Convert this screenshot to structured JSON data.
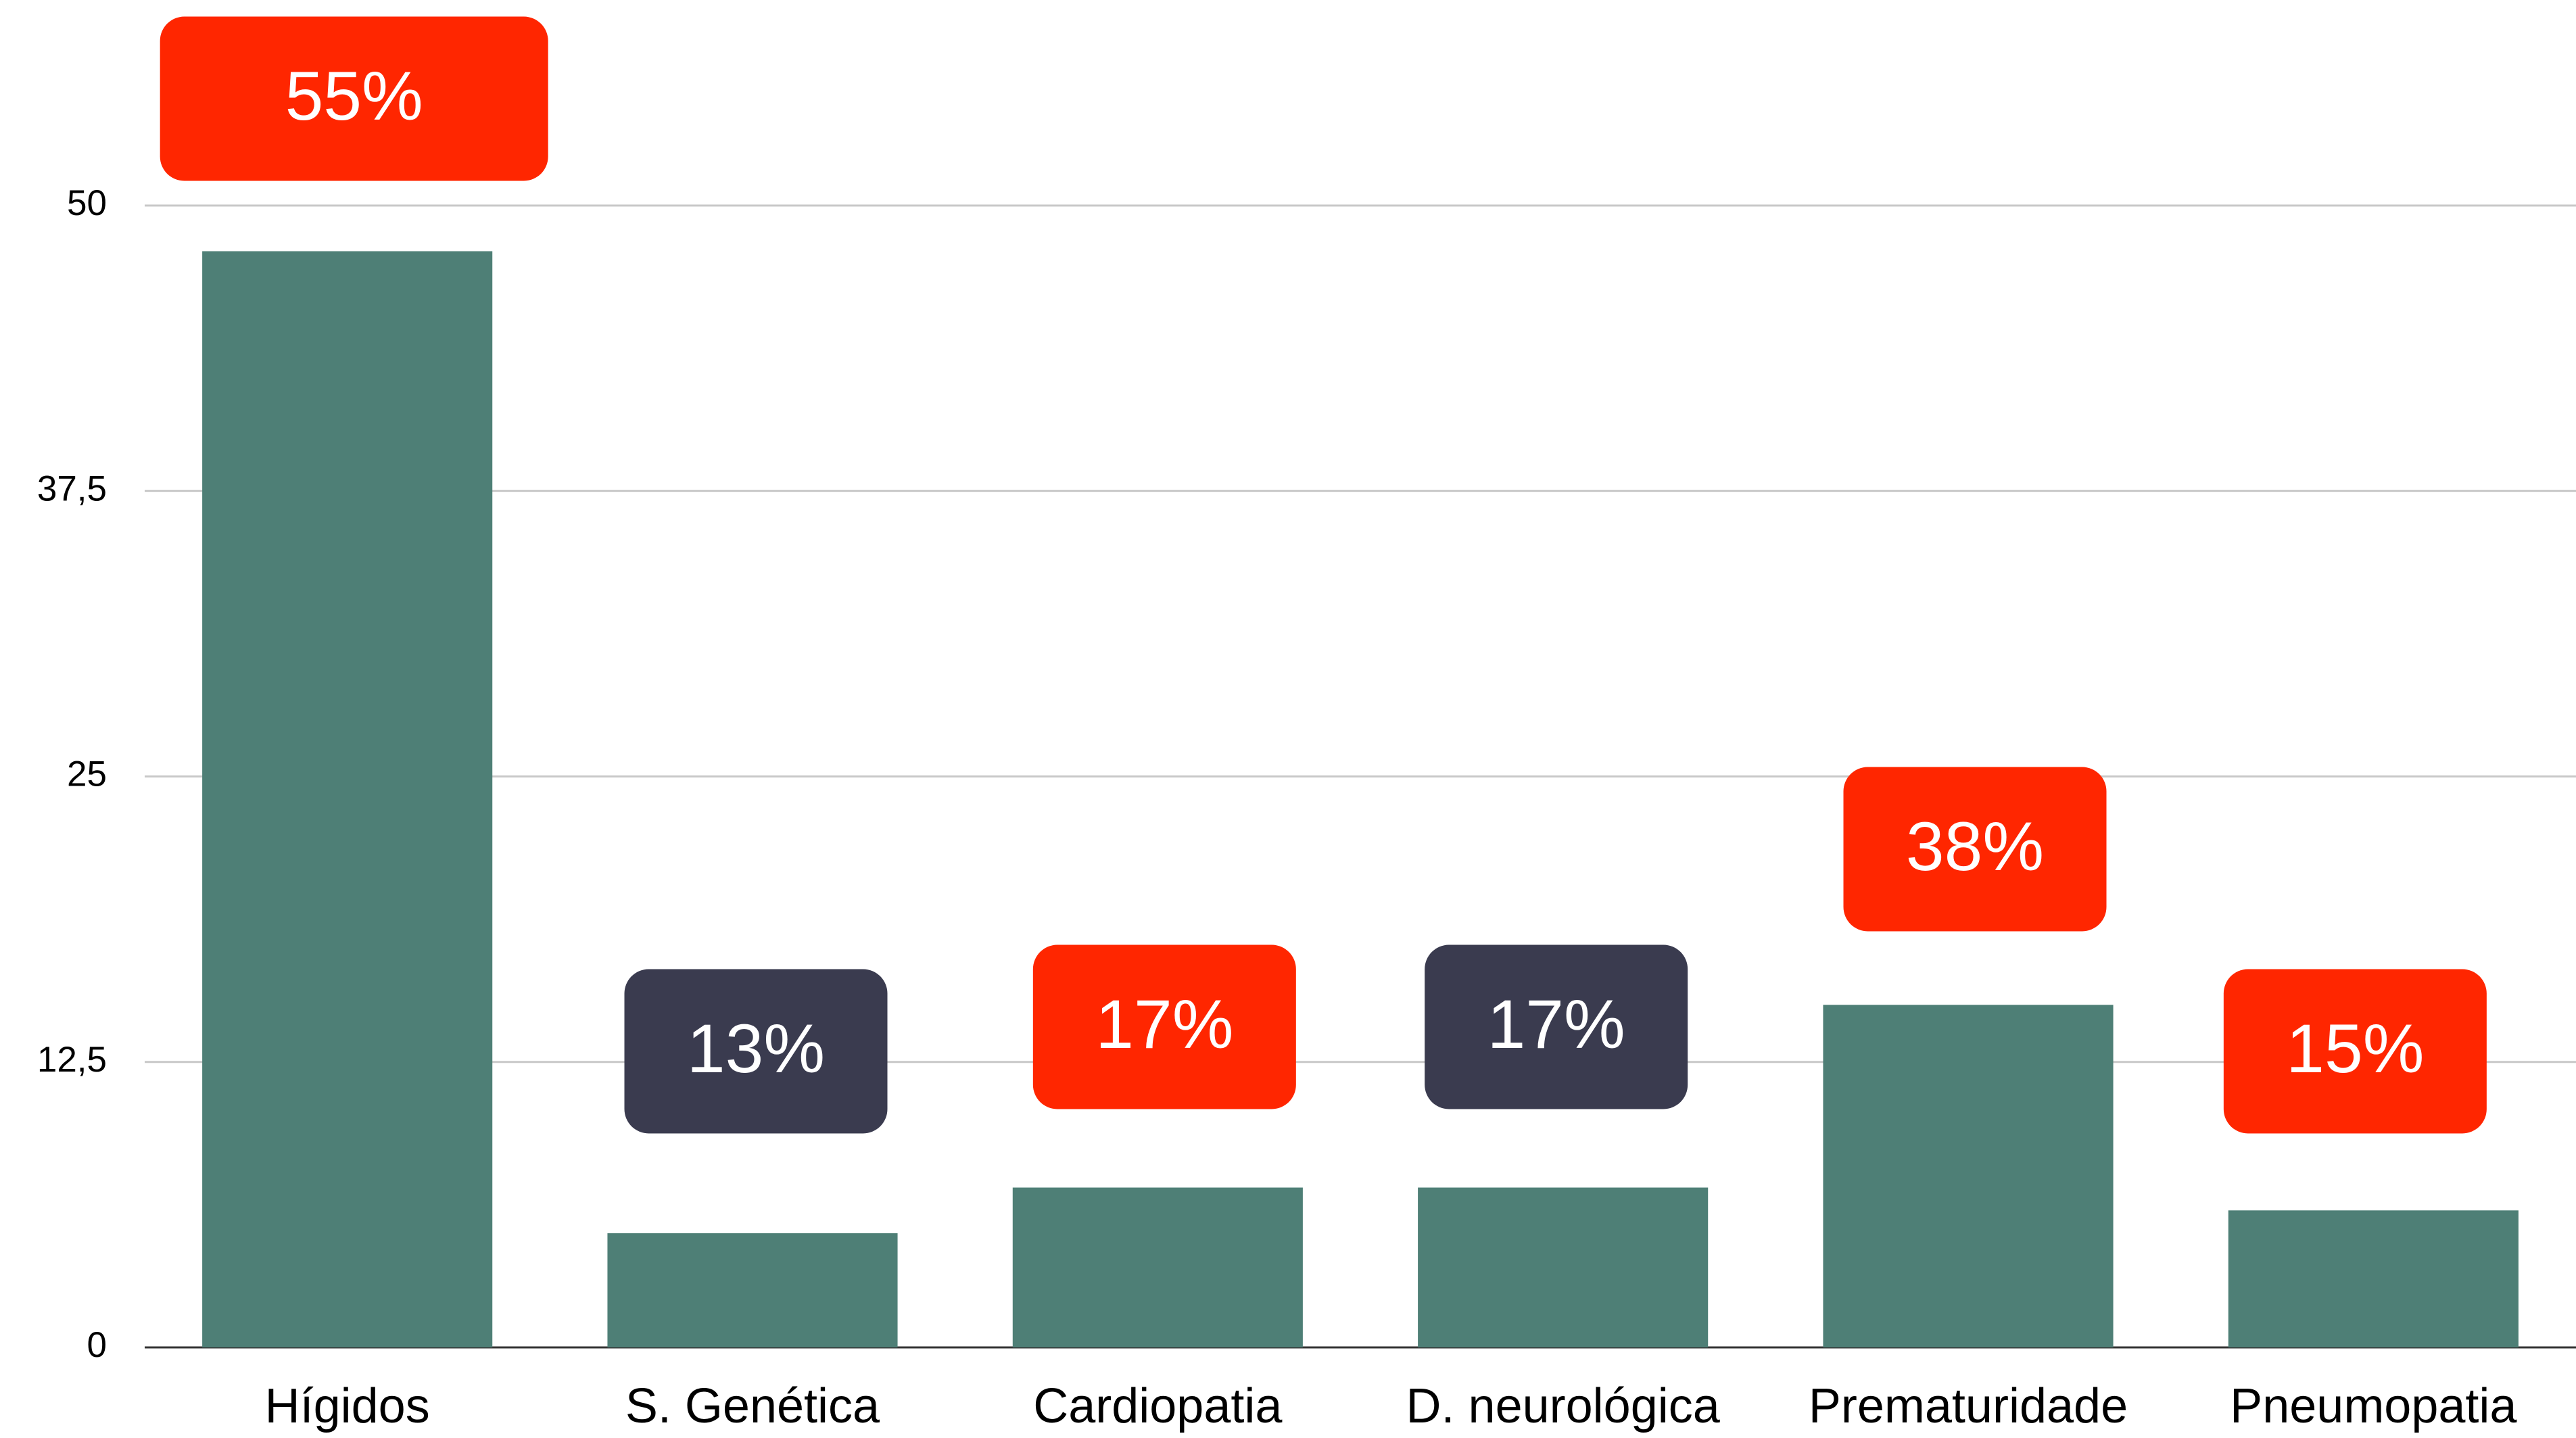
{
  "chart_data": {
    "type": "bar",
    "categories": [
      "Hígidos",
      "S. Genética",
      "Cardiopatia",
      "D. neurológica",
      "Prematuridade",
      "Pneumopatia"
    ],
    "values": [
      48,
      5,
      7,
      7,
      15,
      6
    ],
    "color": "#4e7f76",
    "ylim": [
      0,
      50
    ],
    "yticks": [
      0,
      {
        "value": 12.5,
        "label": "12,5"
      },
      25,
      {
        "value": 37.5,
        "label": "37,5"
      },
      50
    ],
    "grid": true,
    "annotations": [
      {
        "text": "55%",
        "color": "#ff2600"
      },
      {
        "text": "13%",
        "color": "#3a3b4f"
      },
      {
        "text": "17%",
        "color": "#ff2600"
      },
      {
        "text": "17%",
        "color": "#3a3b4f"
      },
      {
        "text": "38%",
        "color": "#ff2600"
      },
      {
        "text": "15%",
        "color": "#ff2600"
      }
    ]
  }
}
